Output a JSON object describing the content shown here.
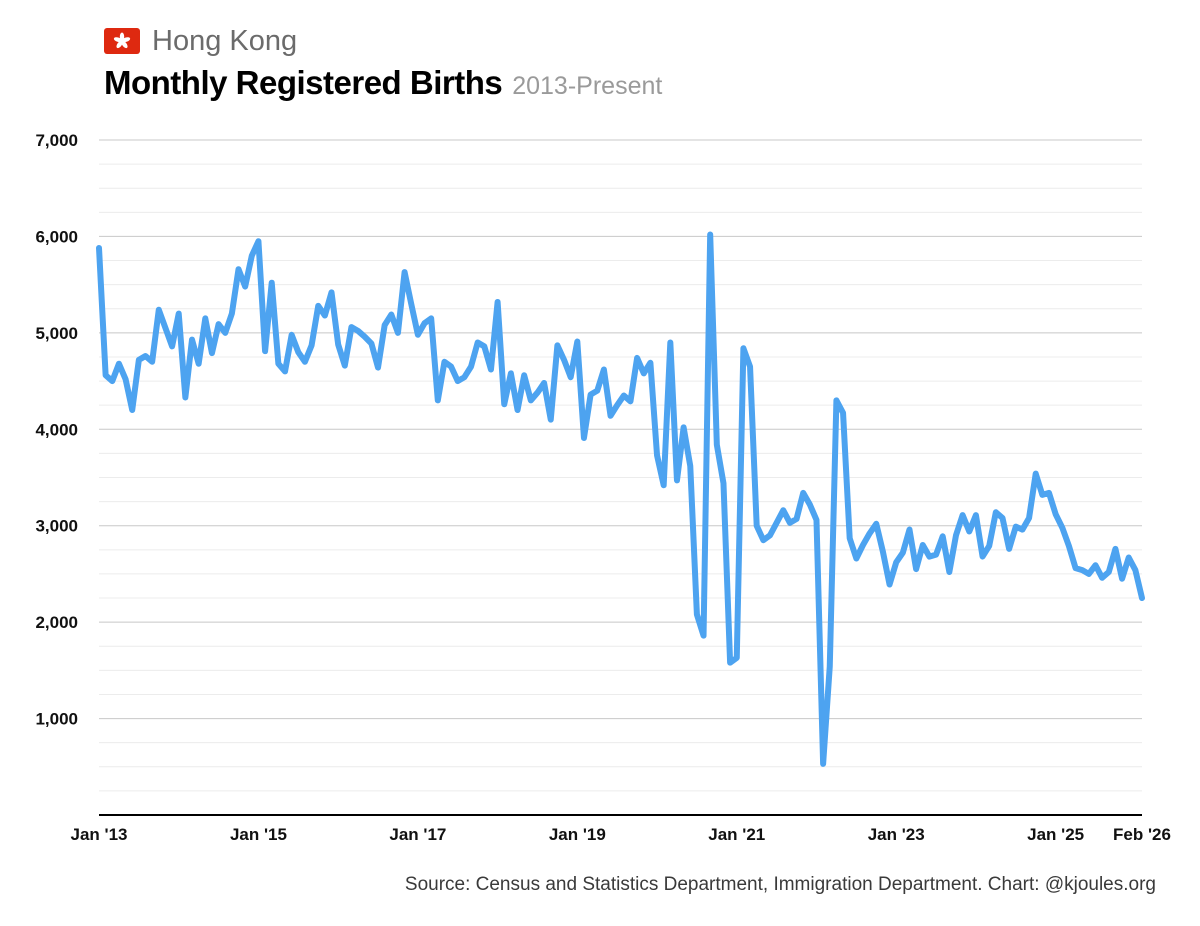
{
  "header": {
    "flag_icon": "hong-kong-flag-icon",
    "region": "Hong Kong",
    "title": "Monthly Registered Births",
    "subtitle": "2013-Present"
  },
  "source": "Source: Census and Statistics Department, Immigration Department. Chart: @kjoules.org",
  "colors": {
    "line": "#4DA3F0",
    "flag_red": "#DE2910",
    "grid_major": "#c8c8c8",
    "grid_minor": "#ececec",
    "axis": "#000000"
  },
  "chart_data": {
    "type": "line",
    "title": "Monthly Registered Births",
    "subtitle": "2013-Present",
    "xlabel": "",
    "ylabel": "",
    "x_start": "2013-01",
    "x_end": "2026-02",
    "x_ticks": [
      {
        "date": "2013-01",
        "label": "Jan '13"
      },
      {
        "date": "2015-01",
        "label": "Jan '15"
      },
      {
        "date": "2017-01",
        "label": "Jan '17"
      },
      {
        "date": "2019-01",
        "label": "Jan '19"
      },
      {
        "date": "2021-01",
        "label": "Jan '21"
      },
      {
        "date": "2023-01",
        "label": "Jan '23"
      },
      {
        "date": "2025-01",
        "label": "Jan '25"
      },
      {
        "date": "2026-02",
        "label": "Feb '26"
      }
    ],
    "ylim": [
      0,
      7000
    ],
    "y_ticks": [
      1000,
      2000,
      3000,
      4000,
      5000,
      6000,
      7000
    ],
    "y_tick_labels": [
      "1,000",
      "2,000",
      "3,000",
      "4,000",
      "5,000",
      "6,000",
      "7,000"
    ],
    "y_minor_step": 250,
    "grid": true,
    "legend": "none",
    "series": [
      {
        "color": "#4DA3F0",
        "values": [
          5880,
          4560,
          4500,
          4680,
          4520,
          4200,
          4720,
          4760,
          4700,
          5240,
          5050,
          4860,
          5200,
          4330,
          4930,
          4680,
          5150,
          4790,
          5090,
          5000,
          5200,
          5660,
          5480,
          5800,
          5950,
          4810,
          5520,
          4680,
          4600,
          4980,
          4800,
          4700,
          4870,
          5280,
          5180,
          5420,
          4880,
          4660,
          5060,
          5020,
          4960,
          4890,
          4640,
          5080,
          5190,
          5000,
          5630,
          5300,
          4980,
          5100,
          5150,
          4300,
          4700,
          4650,
          4500,
          4540,
          4650,
          4900,
          4860,
          4620,
          5320,
          4260,
          4580,
          4200,
          4560,
          4300,
          4380,
          4480,
          4100,
          4870,
          4720,
          4540,
          4910,
          3910,
          4360,
          4400,
          4620,
          4140,
          4250,
          4350,
          4290,
          4740,
          4580,
          4690,
          3730,
          3420,
          4900,
          3470,
          4020,
          3620,
          2080,
          1860,
          6020,
          3840,
          3440,
          1580,
          1630,
          4840,
          4650,
          3000,
          2850,
          2900,
          3030,
          3160,
          3030,
          3070,
          3340,
          3220,
          3060,
          530,
          1540,
          4300,
          4170,
          2870,
          2660,
          2800,
          2920,
          3020,
          2730,
          2390,
          2620,
          2720,
          2960,
          2550,
          2800,
          2680,
          2700,
          2890,
          2520,
          2900,
          3110,
          2940,
          3110,
          2680,
          2790,
          3140,
          3080,
          2760,
          2990,
          2960,
          3080,
          3540,
          3320,
          3340,
          3120,
          2980,
          2790,
          2560,
          2540,
          2500,
          2590,
          2460,
          2520,
          2760,
          2450,
          2670,
          2540,
          2250
        ]
      }
    ]
  }
}
